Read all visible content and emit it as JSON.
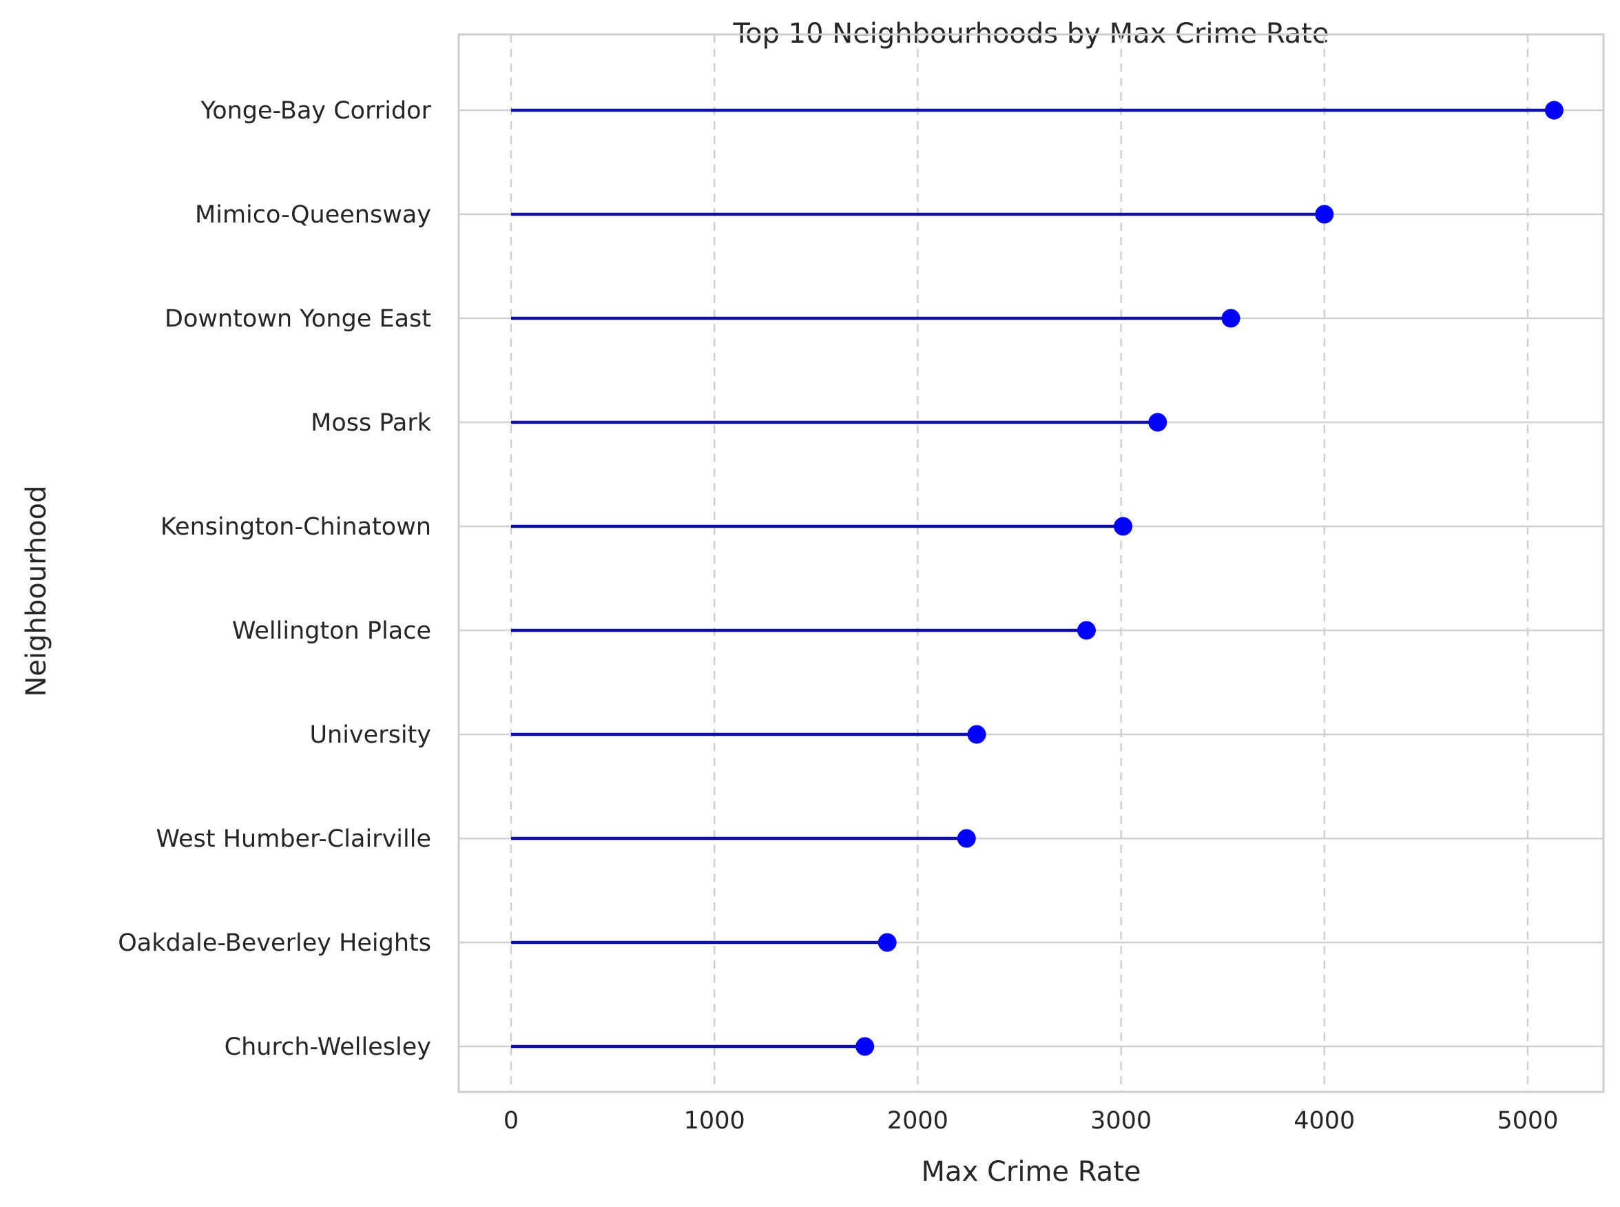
{
  "chart_data": {
    "type": "lollipop",
    "title": "Top 10 Neighbourhoods by Max Crime Rate",
    "xlabel": "Max Crime Rate",
    "ylabel": "Neighbourhood",
    "xlim": [
      -260,
      5400
    ],
    "xticks": [
      0,
      1000,
      2000,
      3000,
      4000,
      5000
    ],
    "grid": "x dashed, y solid",
    "colors": {
      "stem": "#1010a0",
      "marker": "#0000ff",
      "grid": "#d0d0d0",
      "spine": "#cccccc"
    },
    "categories": [
      "Yonge-Bay Corridor",
      "Mimico-Queensway",
      "Downtown Yonge East",
      "Moss Park",
      "Kensington-Chinatown",
      "Wellington Place",
      "University",
      "West Humber-Clairville",
      "Oakdale-Beverley Heights",
      "Church-Wellesley"
    ],
    "values": [
      5130,
      4000,
      3540,
      3180,
      3010,
      2830,
      2290,
      2240,
      1850,
      1740
    ]
  }
}
